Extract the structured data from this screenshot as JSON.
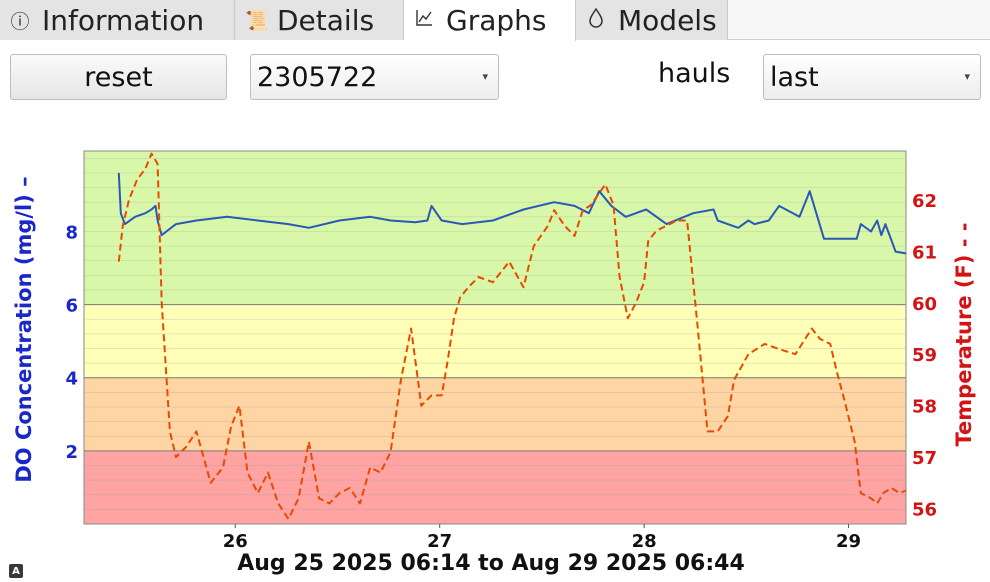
{
  "tabs": [
    {
      "label": "Information",
      "icon": "info-icon",
      "active": false
    },
    {
      "label": "Details",
      "icon": "scroll-icon",
      "active": false
    },
    {
      "label": "Graphs",
      "icon": "chart-icon",
      "active": true
    },
    {
      "label": "Models",
      "icon": "droplet-icon",
      "active": false
    }
  ],
  "controls": {
    "reset_label": "reset",
    "device_value": "2305722",
    "hauls_label": "hauls",
    "hauls_value": "last"
  },
  "corner_badge": "A",
  "chart_data": {
    "type": "line",
    "title": "",
    "xlabel": "Aug 25 2025 06:14 to Aug 29 2025 06:44",
    "ylabel": "DO Concentration (mg/l) –",
    "y2label": "Temperature (F) - -",
    "xlim": [
      0,
      4.021
    ],
    "x_ticks": [
      {
        "label": "26",
        "x": 0.74
      },
      {
        "label": "27",
        "x": 1.74
      },
      {
        "label": "28",
        "x": 2.74
      },
      {
        "label": "29",
        "x": 3.74
      }
    ],
    "ylim": [
      0,
      10.2
    ],
    "y_ticks": [
      2,
      4,
      6,
      8
    ],
    "y2lim": [
      55.7,
      62.95
    ],
    "y2_ticks": [
      56,
      57,
      58,
      59,
      60,
      61,
      62
    ],
    "bands": [
      {
        "from": 0,
        "to": 2,
        "color": "#ffa3a3"
      },
      {
        "from": 2,
        "to": 4,
        "color": "#ffd5a3"
      },
      {
        "from": 4,
        "to": 6,
        "color": "#ffffb8"
      },
      {
        "from": 6,
        "to": 10.2,
        "color": "#d9f7a8"
      }
    ],
    "series": [
      {
        "name": "DO Concentration",
        "axis": "left",
        "color": "#2b58b8",
        "style": "solid",
        "x": [
          0.17,
          0.18,
          0.2,
          0.25,
          0.3,
          0.33,
          0.35,
          0.36,
          0.38,
          0.45,
          0.55,
          0.7,
          0.85,
          1.0,
          1.1,
          1.25,
          1.4,
          1.5,
          1.62,
          1.68,
          1.7,
          1.75,
          1.85,
          2.0,
          2.15,
          2.3,
          2.4,
          2.47,
          2.52,
          2.58,
          2.65,
          2.75,
          2.85,
          2.98,
          3.08,
          3.1,
          3.2,
          3.25,
          3.28,
          3.35,
          3.4,
          3.5,
          3.55,
          3.62,
          3.7,
          3.78,
          3.8,
          3.85,
          3.88,
          3.9,
          3.92,
          3.97,
          4.02
        ],
        "y": [
          9.6,
          8.5,
          8.2,
          8.4,
          8.5,
          8.6,
          8.7,
          8.3,
          7.9,
          8.2,
          8.3,
          8.4,
          8.3,
          8.2,
          8.1,
          8.3,
          8.4,
          8.3,
          8.25,
          8.3,
          8.7,
          8.3,
          8.2,
          8.3,
          8.6,
          8.8,
          8.7,
          8.5,
          9.1,
          8.7,
          8.4,
          8.6,
          8.2,
          8.5,
          8.6,
          8.3,
          8.1,
          8.3,
          8.2,
          8.3,
          8.7,
          8.4,
          9.1,
          7.8,
          7.8,
          7.8,
          8.2,
          8.0,
          8.3,
          7.9,
          8.2,
          7.45,
          7.4
        ]
      },
      {
        "name": "Temperature",
        "axis": "right",
        "color": "#e84a00",
        "style": "dashed",
        "x": [
          0.17,
          0.19,
          0.22,
          0.26,
          0.3,
          0.33,
          0.36,
          0.38,
          0.42,
          0.45,
          0.5,
          0.55,
          0.62,
          0.68,
          0.72,
          0.76,
          0.8,
          0.85,
          0.9,
          0.95,
          1.0,
          1.05,
          1.1,
          1.15,
          1.2,
          1.25,
          1.3,
          1.35,
          1.4,
          1.45,
          1.5,
          1.55,
          1.6,
          1.65,
          1.7,
          1.75,
          1.78,
          1.81,
          1.84,
          1.88,
          1.93,
          2.0,
          2.08,
          2.15,
          2.2,
          2.27,
          2.3,
          2.35,
          2.4,
          2.44,
          2.48,
          2.55,
          2.59,
          2.62,
          2.66,
          2.7,
          2.74,
          2.76,
          2.8,
          2.85,
          2.9,
          2.95,
          3.0,
          3.05,
          3.1,
          3.15,
          3.18,
          3.25,
          3.33,
          3.4,
          3.48,
          3.56,
          3.6,
          3.65,
          3.68,
          3.72,
          3.77,
          3.8,
          3.85,
          3.88,
          3.91,
          3.95,
          3.99,
          4.02
        ],
        "y": [
          60.8,
          61.5,
          62.0,
          62.4,
          62.6,
          62.9,
          62.7,
          60.0,
          57.5,
          57.0,
          57.2,
          57.5,
          56.5,
          56.8,
          57.6,
          58.0,
          56.7,
          56.3,
          56.7,
          56.1,
          55.8,
          56.2,
          57.3,
          56.2,
          56.1,
          56.3,
          56.4,
          56.1,
          56.8,
          56.7,
          57.1,
          58.5,
          59.5,
          58.0,
          58.2,
          58.2,
          58.9,
          59.7,
          60.1,
          60.3,
          60.5,
          60.4,
          60.8,
          60.3,
          61.1,
          61.5,
          61.8,
          61.5,
          61.3,
          61.8,
          61.9,
          62.3,
          61.9,
          60.5,
          59.7,
          60.0,
          60.4,
          61.2,
          61.4,
          61.5,
          61.6,
          61.6,
          59.6,
          57.5,
          57.5,
          57.8,
          58.5,
          59.0,
          59.2,
          59.1,
          59.0,
          59.5,
          59.3,
          59.2,
          58.7,
          58.1,
          57.3,
          56.3,
          56.2,
          56.1,
          56.3,
          56.4,
          56.3,
          56.35
        ]
      }
    ]
  }
}
